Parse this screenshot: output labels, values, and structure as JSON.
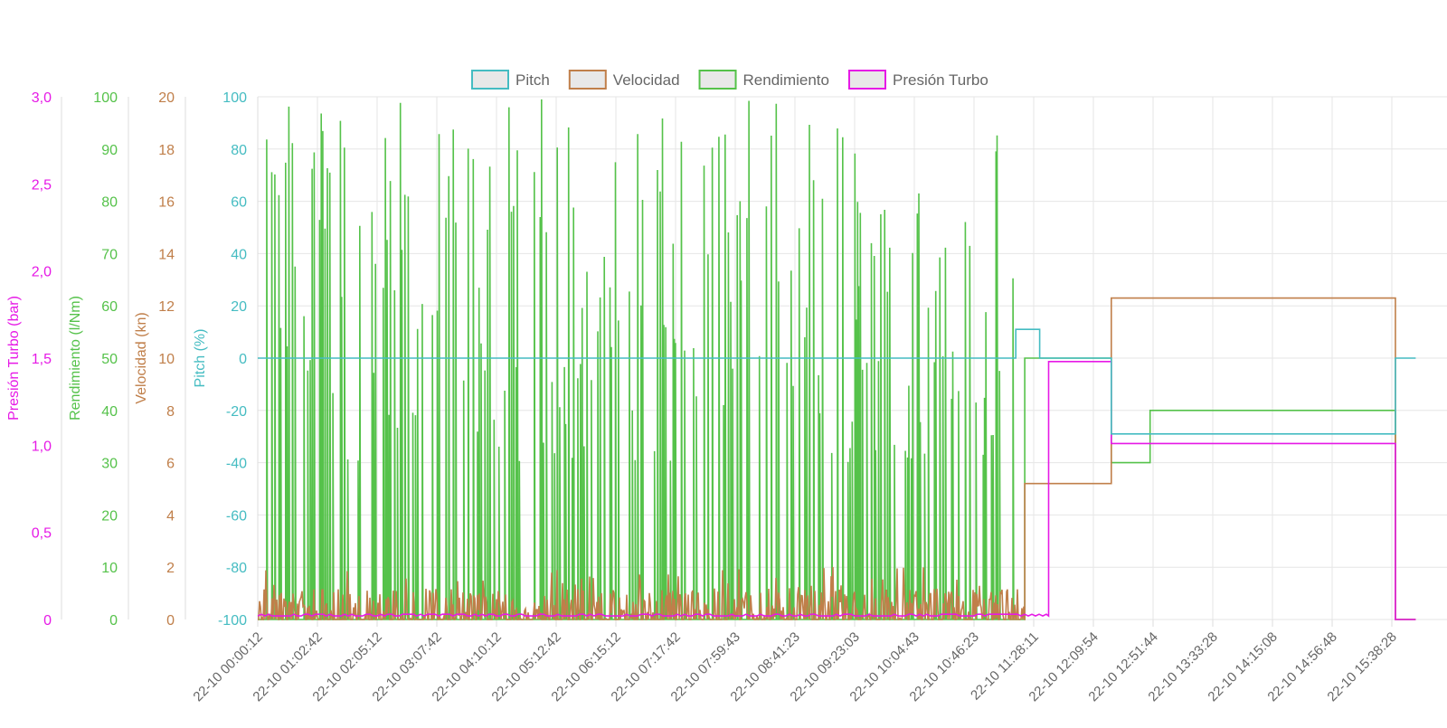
{
  "chart_data": {
    "type": "line",
    "line_style": "stepped",
    "legend_position": "top-center",
    "grid": true,
    "x_tick_labels": [
      "22-10 00:00:12",
      "22-10 01:02:42",
      "22-10 02:05:12",
      "22-10 03:07:42",
      "22-10 04:10:12",
      "22-10 05:12:42",
      "22-10 06:15:12",
      "22-10 07:17:42",
      "22-10 07:59:43",
      "22-10 08:41:23",
      "22-10 09:23:03",
      "22-10 10:04:43",
      "22-10 10:46:23",
      "22-10 11:28:11",
      "22-10 12:09:54",
      "22-10 12:51:44",
      "22-10 13:33:28",
      "22-10 14:15:08",
      "22-10 14:56:48",
      "22-10 15:38:28"
    ],
    "axes": [
      {
        "id": "turbo",
        "label": "Presión Turbo (bar)",
        "min": 0,
        "max": 3.0,
        "ticks": [
          "0",
          "0,5",
          "1,0",
          "1,5",
          "2,0",
          "2,5",
          "3,0"
        ],
        "tick_values": [
          0,
          0.5,
          1.0,
          1.5,
          2.0,
          2.5,
          3.0
        ],
        "color": "#e619e6"
      },
      {
        "id": "rend",
        "label": "Rendimiento (l/Nm)",
        "min": 0,
        "max": 100,
        "ticks": [
          "0",
          "10",
          "20",
          "30",
          "40",
          "50",
          "60",
          "70",
          "80",
          "90",
          "100"
        ],
        "tick_values": [
          0,
          10,
          20,
          30,
          40,
          50,
          60,
          70,
          80,
          90,
          100
        ],
        "color": "#55c24a"
      },
      {
        "id": "vel",
        "label": "Velocidad (kn)",
        "min": 0,
        "max": 20,
        "ticks": [
          "0",
          "2",
          "4",
          "6",
          "8",
          "10",
          "12",
          "14",
          "16",
          "18",
          "20"
        ],
        "tick_values": [
          0,
          2,
          4,
          6,
          8,
          10,
          12,
          14,
          16,
          18,
          20
        ],
        "color": "#c07f4a"
      },
      {
        "id": "pitch",
        "label": "Pitch (%)",
        "min": -100,
        "max": 100,
        "ticks": [
          "-100",
          "-80",
          "-60",
          "-40",
          "-20",
          "0",
          "20",
          "40",
          "60",
          "80",
          "100"
        ],
        "tick_values": [
          -100,
          -80,
          -60,
          -40,
          -20,
          0,
          20,
          40,
          60,
          80,
          100
        ],
        "color": "#45bcc2"
      }
    ],
    "series": [
      {
        "name": "Pitch",
        "axis": "pitch",
        "color": "#45bcc2",
        "steps": [
          [
            0,
            0
          ],
          [
            12.7,
            11
          ],
          [
            13.1,
            0
          ],
          [
            14.3,
            -29
          ],
          [
            19.06,
            0
          ],
          [
            19.4,
            0
          ]
        ]
      },
      {
        "name": "Velocidad",
        "axis": "vel",
        "color": "#c07f4a",
        "noise": {
          "from": 0,
          "to": 12.85,
          "base": 0,
          "max": 2.0
        },
        "steps": [
          [
            12.85,
            5.2
          ],
          [
            14.3,
            12.3
          ],
          [
            19.06,
            0
          ],
          [
            19.4,
            0
          ]
        ]
      },
      {
        "name": "Rendimiento",
        "axis": "rend",
        "color": "#55c24a",
        "noise": {
          "from": 0,
          "to": 12.85,
          "base": 0,
          "max": 100
        },
        "steps": [
          [
            12.85,
            50
          ],
          [
            14.3,
            30
          ],
          [
            14.95,
            40
          ],
          [
            19.06,
            0
          ],
          [
            19.4,
            0
          ]
        ]
      },
      {
        "name": "Presión Turbo",
        "axis": "turbo",
        "color": "#e619e6",
        "noise": {
          "from": 0,
          "to": 13.25,
          "base": 0.02,
          "max": 0.02
        },
        "steps": [
          [
            13.25,
            1.48
          ],
          [
            14.3,
            1.01
          ],
          [
            19.06,
            0
          ],
          [
            19.4,
            0
          ]
        ]
      }
    ]
  }
}
